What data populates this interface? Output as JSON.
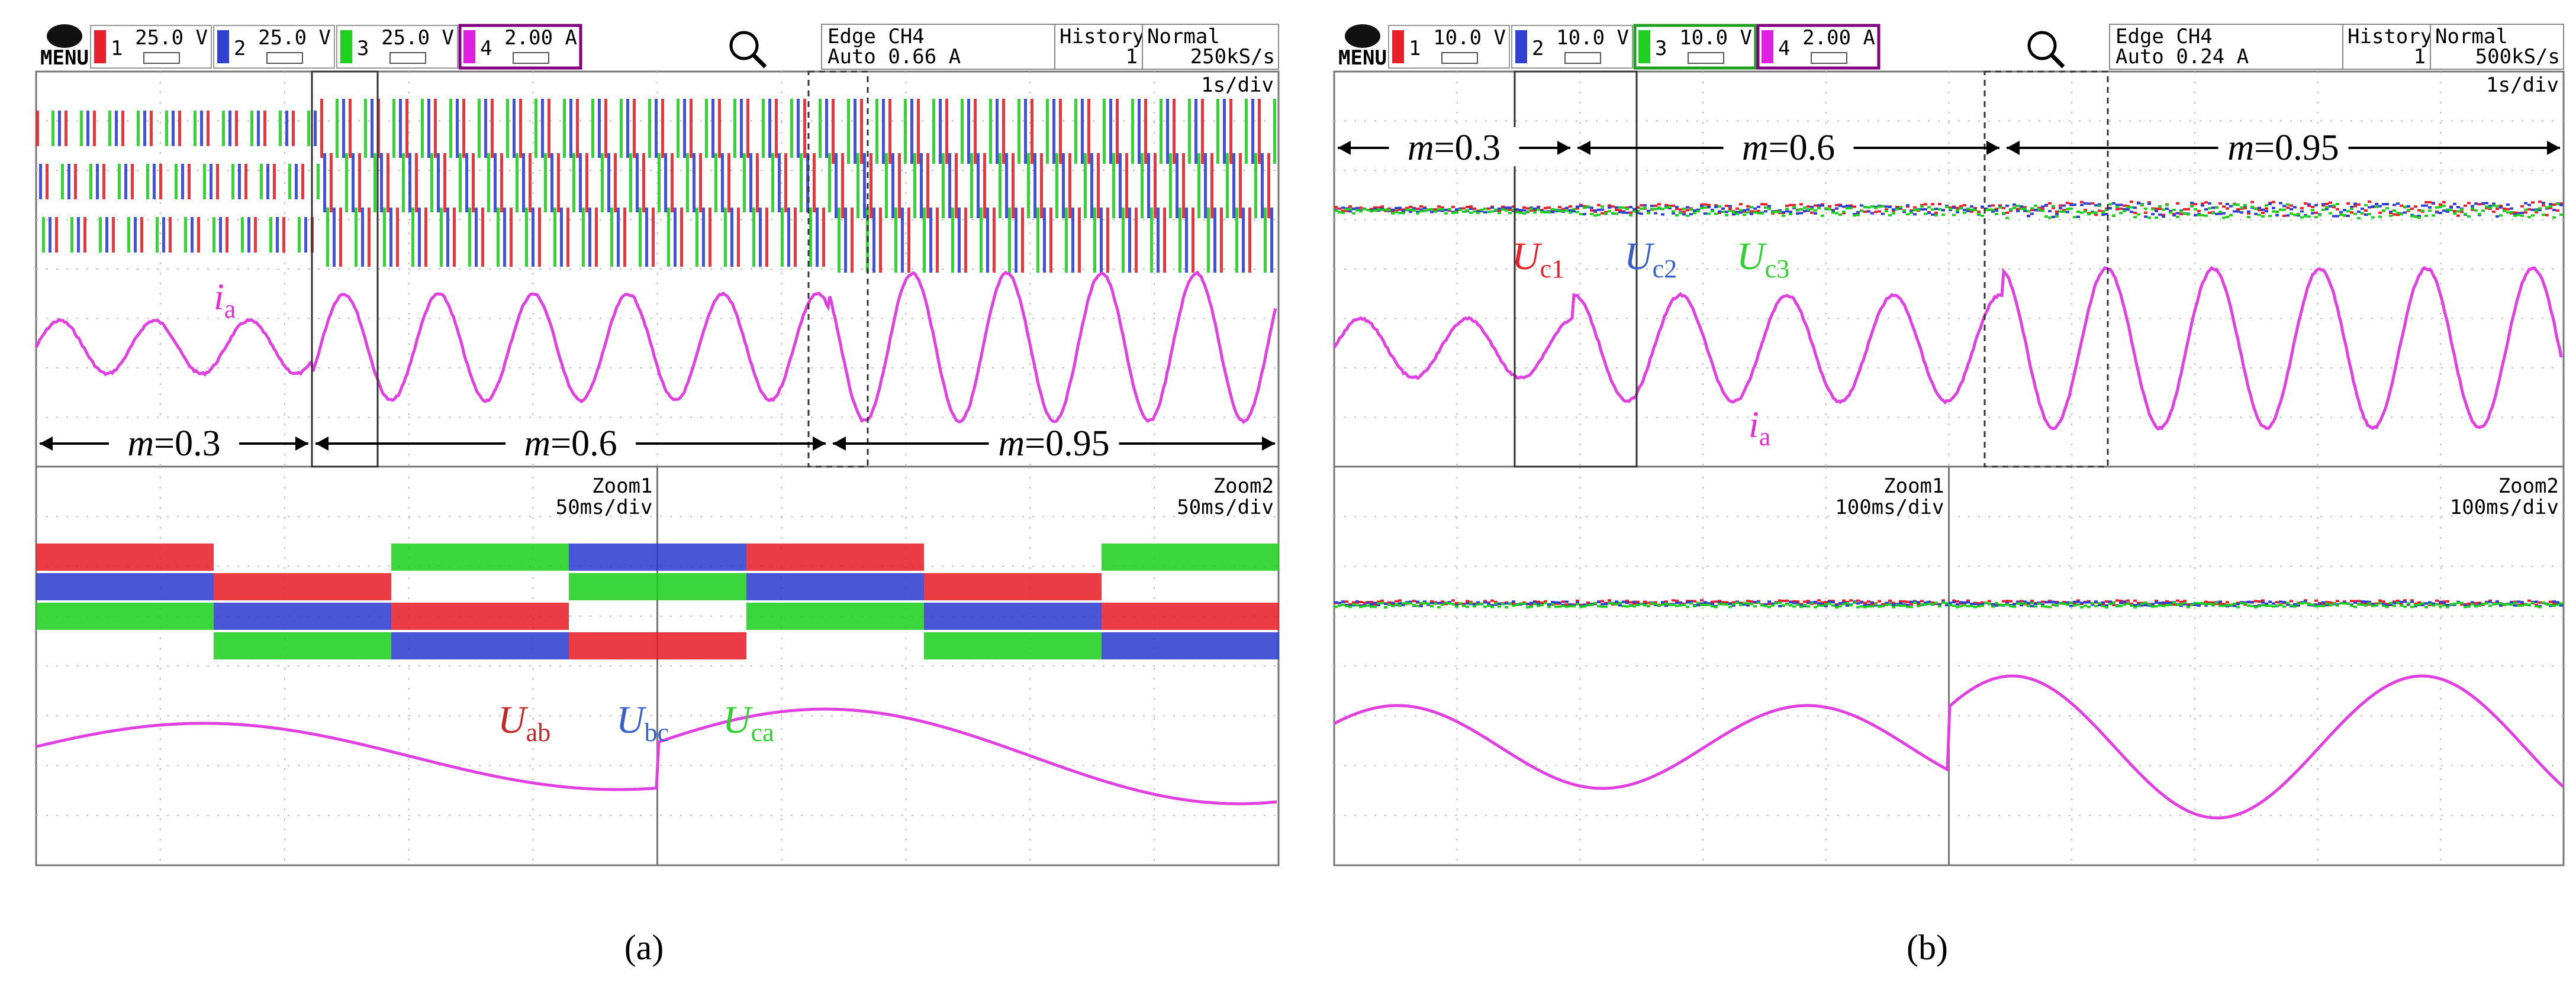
{
  "panels": [
    {
      "caption": "(a)",
      "menu": "MENU",
      "channels": [
        {
          "num": "1",
          "scale": "25.0 V",
          "color": "#e8202a"
        },
        {
          "num": "2",
          "scale": "25.0 V",
          "color": "#3040d0"
        },
        {
          "num": "3",
          "scale": "25.0 V",
          "color": "#20d020"
        },
        {
          "num": "4",
          "scale": "2.00 A",
          "color": "#e020e0"
        }
      ],
      "trigger": {
        "line1": "Edge CH4",
        "line2": "Auto 0.66 A"
      },
      "history": {
        "label": "History",
        "value": "1"
      },
      "mode": {
        "label": "Normal",
        "rate": "250kS/s"
      },
      "timebase": "1s/div",
      "current_label": {
        "main": "i",
        "sub": "a"
      },
      "segments": [
        {
          "var": "m",
          "value": "=0.3"
        },
        {
          "var": "m",
          "value": "=0.6"
        },
        {
          "var": "m",
          "value": "=0.95"
        }
      ],
      "zooms": [
        {
          "name": "Zoom1",
          "timebase": "50ms/div"
        },
        {
          "name": "Zoom2",
          "timebase": "50ms/div"
        }
      ],
      "voltage_labels": [
        {
          "main": "U",
          "sub": "ab",
          "color": "#c0282a"
        },
        {
          "main": "U",
          "sub": "bc",
          "color": "#3860c8"
        },
        {
          "main": "U",
          "sub": "ca",
          "color": "#30d030"
        }
      ]
    },
    {
      "caption": "(b)",
      "menu": "MENU",
      "channels": [
        {
          "num": "1",
          "scale": "10.0 V",
          "color": "#e8202a"
        },
        {
          "num": "2",
          "scale": "10.0 V",
          "color": "#3040d0"
        },
        {
          "num": "3",
          "scale": "10.0 V",
          "color": "#20d020"
        },
        {
          "num": "4",
          "scale": "2.00 A",
          "color": "#e020e0"
        }
      ],
      "trigger": {
        "line1": "Edge CH4",
        "line2": "Auto 0.24 A"
      },
      "history": {
        "label": "History",
        "value": "1"
      },
      "mode": {
        "label": "Normal",
        "rate": "500kS/s"
      },
      "timebase": "1s/div",
      "current_label": {
        "main": "i",
        "sub": "a"
      },
      "segments": [
        {
          "var": "m",
          "value": "=0.3"
        },
        {
          "var": "m",
          "value": "=0.6"
        },
        {
          "var": "m",
          "value": "=0.95"
        }
      ],
      "zooms": [
        {
          "name": "Zoom1",
          "timebase": "100ms/div"
        },
        {
          "name": "Zoom2",
          "timebase": "100ms/div"
        }
      ],
      "voltage_labels": [
        {
          "main": "U",
          "sub": "c1",
          "color": "#e8202a"
        },
        {
          "main": "U",
          "sub": "c2",
          "color": "#3860c8"
        },
        {
          "main": "U",
          "sub": "c3",
          "color": "#30d030"
        }
      ]
    }
  ]
}
